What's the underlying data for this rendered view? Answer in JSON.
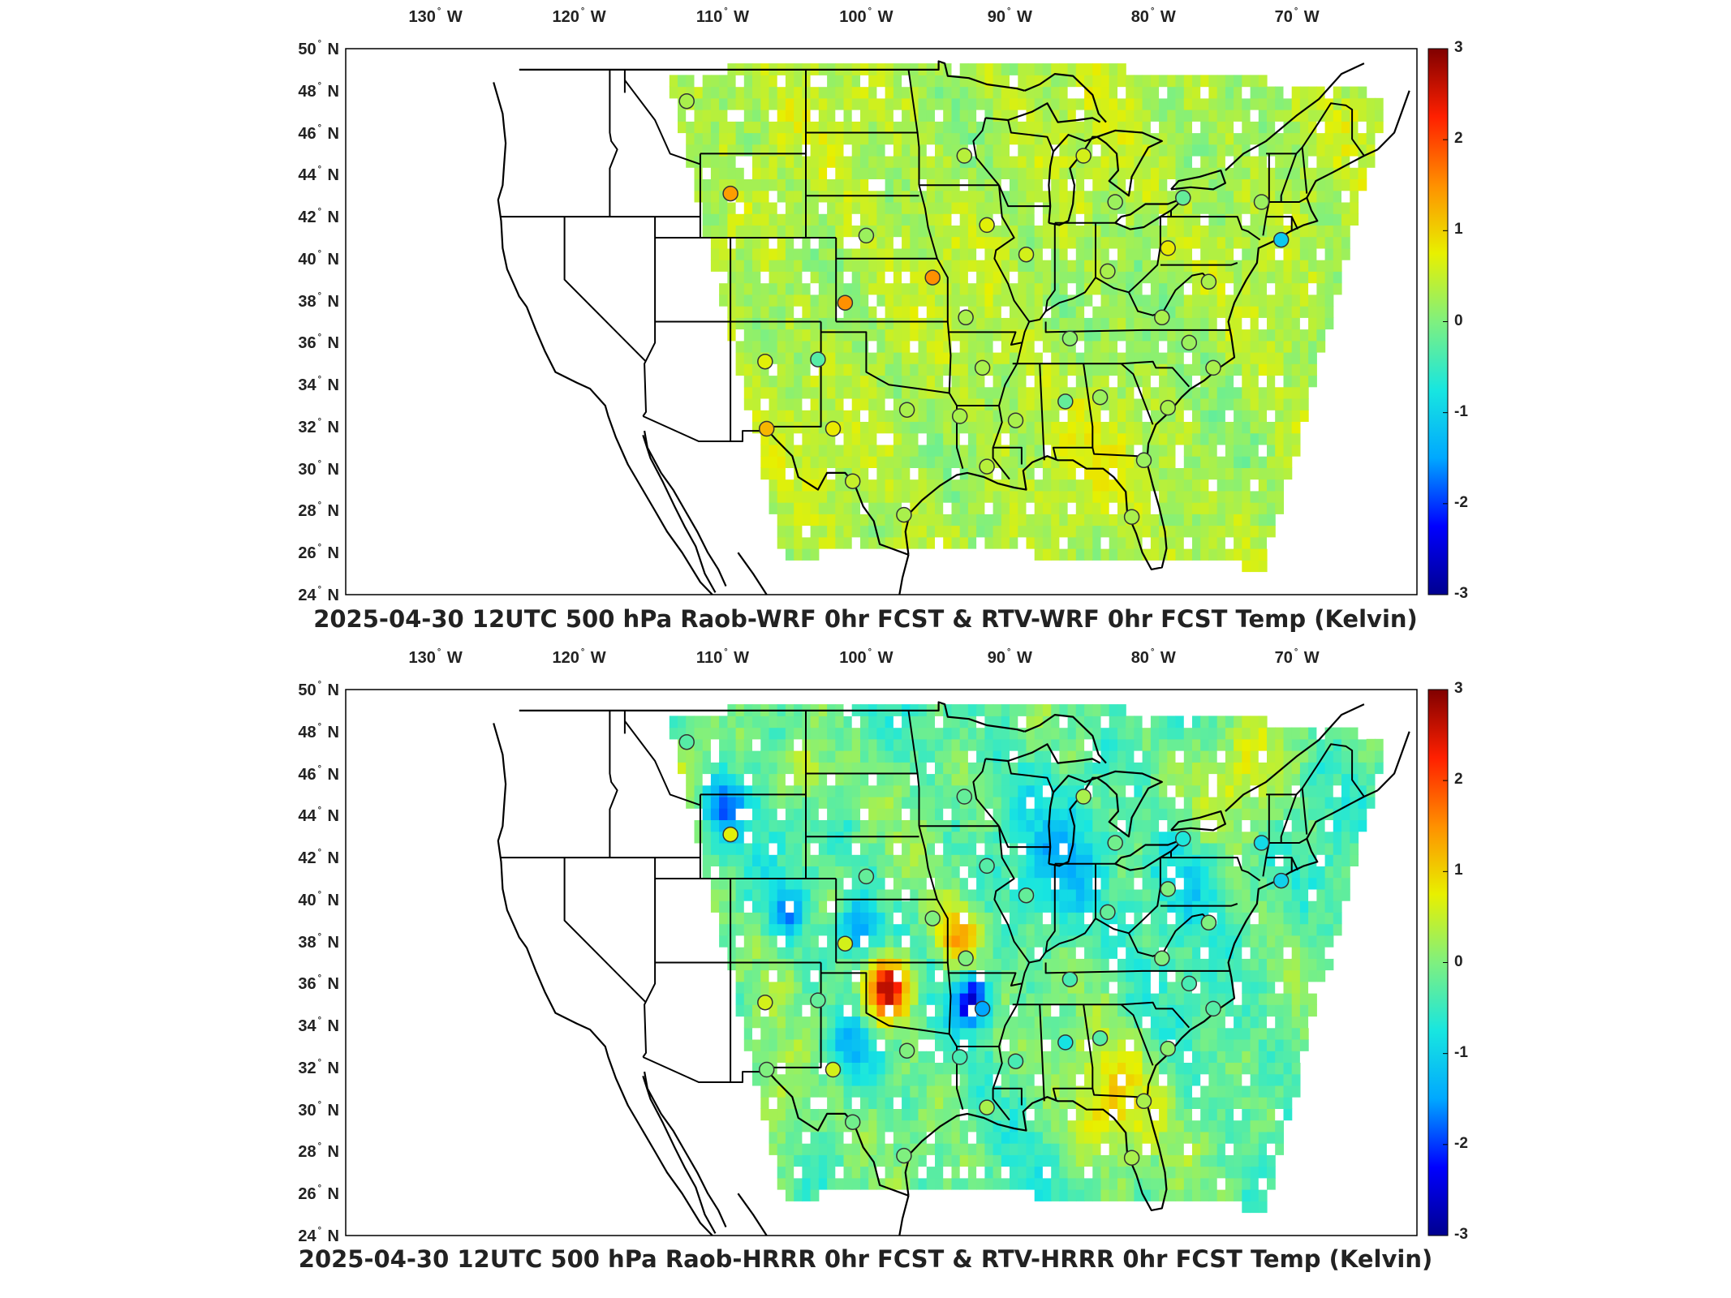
{
  "colors": {
    "colormap": [
      "#00008f",
      "#0000ff",
      "#00a8ff",
      "#18e6e0",
      "#7ff07f",
      "#e8f000",
      "#ff9000",
      "#ff2000",
      "#800000"
    ],
    "frame": "#000000",
    "state_lines": "#000000",
    "missing": "#ffffff"
  },
  "map_extent": {
    "lon_ticks": [
      "130",
      "120",
      "110",
      "100",
      "90",
      "80",
      "70"
    ],
    "lon_hemisphere": "W",
    "lat_ticks": [
      "50",
      "48",
      "46",
      "44",
      "42",
      "40",
      "38",
      "36",
      "34",
      "32",
      "30",
      "28",
      "26",
      "24"
    ],
    "lat_hemisphere": "N",
    "degree_symbol": "°"
  },
  "colorbar": {
    "min": -3,
    "max": 3,
    "tick_labels": [
      "3",
      "2",
      "1",
      "0",
      "-1",
      "-2",
      "-3"
    ]
  },
  "panels": [
    {
      "id": "wrf",
      "title": "2025-04-30 12UTC 500 hPa Raob-WRF 0hr FCST & RTV-WRF 0hr FCST Temp (Kelvin)",
      "field_bias": 0.35,
      "field_variability": 0.35,
      "stations": [
        {
          "lon": -111.9,
          "lat": 47.5,
          "v": 0.3
        },
        {
          "lon": -109.0,
          "lat": 43.1,
          "v": 1.4
        },
        {
          "lon": -93.5,
          "lat": 44.9,
          "v": 0.4
        },
        {
          "lon": -85.6,
          "lat": 44.9,
          "v": 0.6
        },
        {
          "lon": -83.5,
          "lat": 42.7,
          "v": 0.2
        },
        {
          "lon": -73.8,
          "lat": 42.7,
          "v": 0.2
        },
        {
          "lon": -79.0,
          "lat": 42.9,
          "v": -0.2
        },
        {
          "lon": -92.0,
          "lat": 41.6,
          "v": 0.7
        },
        {
          "lon": -100.0,
          "lat": 41.1,
          "v": 0.2
        },
        {
          "lon": -89.4,
          "lat": 40.2,
          "v": 0.6
        },
        {
          "lon": -80.0,
          "lat": 40.5,
          "v": 0.8
        },
        {
          "lon": -72.5,
          "lat": 40.9,
          "v": -1.1
        },
        {
          "lon": -95.6,
          "lat": 39.1,
          "v": 1.5
        },
        {
          "lon": -84.0,
          "lat": 39.4,
          "v": 0.3
        },
        {
          "lon": -77.3,
          "lat": 38.9,
          "v": 0.3
        },
        {
          "lon": -101.4,
          "lat": 37.9,
          "v": 1.5
        },
        {
          "lon": -93.4,
          "lat": 37.2,
          "v": 0.3
        },
        {
          "lon": -80.4,
          "lat": 37.2,
          "v": 0.3
        },
        {
          "lon": -86.5,
          "lat": 36.2,
          "v": 0.1
        },
        {
          "lon": -78.6,
          "lat": 36.0,
          "v": 0.2
        },
        {
          "lon": -106.7,
          "lat": 35.1,
          "v": 0.7
        },
        {
          "lon": -103.2,
          "lat": 35.2,
          "v": -0.3
        },
        {
          "lon": -92.3,
          "lat": 34.8,
          "v": 0.3
        },
        {
          "lon": -77.0,
          "lat": 34.8,
          "v": 0.3
        },
        {
          "lon": -86.8,
          "lat": 33.2,
          "v": -0.2
        },
        {
          "lon": -84.5,
          "lat": 33.4,
          "v": 0.2
        },
        {
          "lon": -97.3,
          "lat": 32.8,
          "v": 0.3
        },
        {
          "lon": -93.8,
          "lat": 32.5,
          "v": 0.3
        },
        {
          "lon": -90.1,
          "lat": 32.3,
          "v": 0.3
        },
        {
          "lon": -80.0,
          "lat": 32.9,
          "v": 0.3
        },
        {
          "lon": -106.6,
          "lat": 31.9,
          "v": 1.2
        },
        {
          "lon": -102.2,
          "lat": 31.9,
          "v": 0.8
        },
        {
          "lon": -92.0,
          "lat": 30.1,
          "v": 0.4
        },
        {
          "lon": -81.6,
          "lat": 30.4,
          "v": 0.2
        },
        {
          "lon": -100.9,
          "lat": 29.4,
          "v": 0.5
        },
        {
          "lon": -97.5,
          "lat": 27.8,
          "v": 0.3
        },
        {
          "lon": -82.4,
          "lat": 27.7,
          "v": 0.3
        }
      ],
      "hotspots": [
        {
          "lon": -80.0,
          "lat": 35.5,
          "r": 4.0,
          "amp": -0.3
        },
        {
          "lon": -83.0,
          "lat": 32.0,
          "r": 3.5,
          "amp": 0.2
        }
      ]
    },
    {
      "id": "hrrr",
      "title": "2025-04-30 12UTC 500 hPa Raob-HRRR 0hr FCST & RTV-HRRR 0hr FCST Temp (Kelvin)",
      "field_bias": -0.25,
      "field_variability": 0.55,
      "stations": [
        {
          "lon": -111.9,
          "lat": 47.5,
          "v": -0.3
        },
        {
          "lon": -109.0,
          "lat": 43.1,
          "v": 0.7
        },
        {
          "lon": -93.5,
          "lat": 44.9,
          "v": -0.2
        },
        {
          "lon": -85.6,
          "lat": 44.9,
          "v": 0.3
        },
        {
          "lon": -83.5,
          "lat": 42.7,
          "v": -0.1
        },
        {
          "lon": -73.8,
          "lat": 42.7,
          "v": -0.9
        },
        {
          "lon": -79.0,
          "lat": 42.9,
          "v": -0.7
        },
        {
          "lon": -92.0,
          "lat": 41.6,
          "v": -0.3
        },
        {
          "lon": -100.0,
          "lat": 41.1,
          "v": -0.2
        },
        {
          "lon": -89.4,
          "lat": 40.2,
          "v": -0.2
        },
        {
          "lon": -80.0,
          "lat": 40.5,
          "v": 0.0
        },
        {
          "lon": -72.5,
          "lat": 40.9,
          "v": -1.0
        },
        {
          "lon": -95.6,
          "lat": 39.1,
          "v": 0.0
        },
        {
          "lon": -84.0,
          "lat": 39.4,
          "v": -0.2
        },
        {
          "lon": -77.3,
          "lat": 38.9,
          "v": 0.0
        },
        {
          "lon": -101.4,
          "lat": 37.9,
          "v": 0.6
        },
        {
          "lon": -93.4,
          "lat": 37.2,
          "v": 0.0
        },
        {
          "lon": -80.4,
          "lat": 37.2,
          "v": 0.0
        },
        {
          "lon": -86.5,
          "lat": 36.2,
          "v": -0.4
        },
        {
          "lon": -78.6,
          "lat": 36.0,
          "v": -0.4
        },
        {
          "lon": -106.7,
          "lat": 35.1,
          "v": 0.6
        },
        {
          "lon": -103.2,
          "lat": 35.2,
          "v": -0.2
        },
        {
          "lon": -92.3,
          "lat": 34.8,
          "v": -1.5
        },
        {
          "lon": -77.0,
          "lat": 34.8,
          "v": -0.3
        },
        {
          "lon": -86.8,
          "lat": 33.2,
          "v": -0.8
        },
        {
          "lon": -84.5,
          "lat": 33.4,
          "v": -0.3
        },
        {
          "lon": -97.3,
          "lat": 32.8,
          "v": 0.0
        },
        {
          "lon": -93.8,
          "lat": 32.5,
          "v": -0.4
        },
        {
          "lon": -90.1,
          "lat": 32.3,
          "v": -0.4
        },
        {
          "lon": -80.0,
          "lat": 32.9,
          "v": 0.1
        },
        {
          "lon": -106.6,
          "lat": 31.9,
          "v": 0.0
        },
        {
          "lon": -102.2,
          "lat": 31.9,
          "v": 0.6
        },
        {
          "lon": -92.0,
          "lat": 30.1,
          "v": 0.3
        },
        {
          "lon": -81.6,
          "lat": 30.4,
          "v": 0.3
        },
        {
          "lon": -100.9,
          "lat": 29.4,
          "v": -0.1
        },
        {
          "lon": -97.5,
          "lat": 27.8,
          "v": 0.0
        },
        {
          "lon": -82.4,
          "lat": 27.7,
          "v": 0.3
        }
      ],
      "hotspots": [
        {
          "lon": -98.5,
          "lat": 35.8,
          "r": 1.6,
          "amp": 3.0
        },
        {
          "lon": -93.0,
          "lat": 35.2,
          "r": 1.2,
          "amp": -2.4
        },
        {
          "lon": -94.0,
          "lat": 38.3,
          "r": 1.5,
          "amp": 1.6
        },
        {
          "lon": -100.5,
          "lat": 38.6,
          "r": 1.3,
          "amp": -1.5
        },
        {
          "lon": -109.5,
          "lat": 44.5,
          "r": 1.5,
          "amp": -1.4
        },
        {
          "lon": -105.2,
          "lat": 39.5,
          "r": 1.2,
          "amp": -1.2
        },
        {
          "lon": -104.0,
          "lat": 46.0,
          "r": 1.5,
          "amp": 1.0
        },
        {
          "lon": -84.0,
          "lat": 30.5,
          "r": 3.0,
          "amp": 1.3
        },
        {
          "lon": -101.0,
          "lat": 33.0,
          "r": 1.5,
          "amp": -1.0
        },
        {
          "lon": -75.0,
          "lat": 46.0,
          "r": 3.0,
          "amp": 0.9
        },
        {
          "lon": -87.0,
          "lat": 41.5,
          "r": 3.0,
          "amp": -0.8
        },
        {
          "lon": -79.0,
          "lat": 41.0,
          "r": 2.5,
          "amp": -0.8
        },
        {
          "lon": -106.0,
          "lat": 30.0,
          "r": 2.5,
          "amp": 0.9
        },
        {
          "lon": -112.0,
          "lat": 46.0,
          "r": 1.8,
          "amp": 0.8
        }
      ]
    }
  ]
}
